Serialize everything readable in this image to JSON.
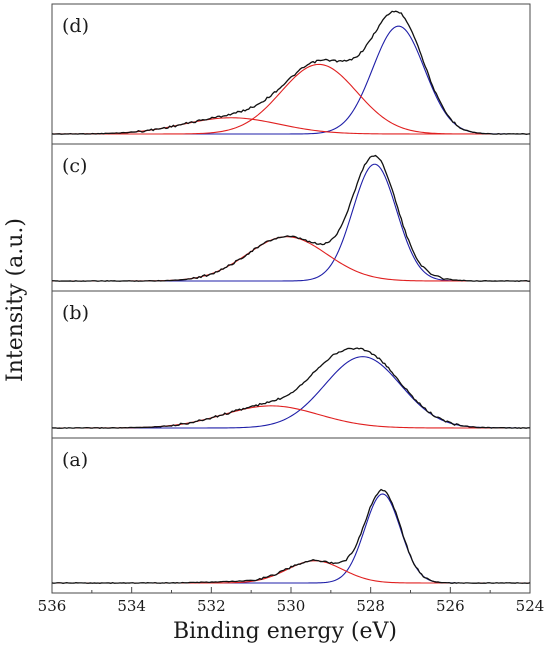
{
  "chart_data": {
    "type": "line",
    "xlabel": "Binding energy (eV)",
    "ylabel": "Intensity (a.u.)",
    "xlim": [
      536,
      524
    ],
    "x_reversed": true,
    "xticks": [
      "536",
      "534",
      "532",
      "530",
      "528",
      "526",
      "524"
    ],
    "colors": {
      "measured": "#111111",
      "fit_peak_1": "#1f1fa8",
      "fit_peak_2": "#e02020",
      "fit_peak_3": "#e02020"
    },
    "panels": [
      {
        "label": "(d)",
        "measured_peaks": [
          {
            "center": 527.3,
            "height": 0.97,
            "width": 0.65
          },
          {
            "center": 529.2,
            "height": 0.6,
            "width": 0.95
          },
          {
            "center": 531.5,
            "height": 0.14,
            "width": 1.2
          }
        ],
        "fit_peaks": [
          {
            "series": "fit_peak_1",
            "center": 527.3,
            "height": 0.93,
            "width": 0.65
          },
          {
            "series": "fit_peak_2",
            "center": 529.3,
            "height": 0.6,
            "width": 0.95
          },
          {
            "series": "fit_peak_3",
            "center": 531.5,
            "height": 0.14,
            "width": 1.2
          }
        ]
      },
      {
        "label": "(c)",
        "measured_peaks": [
          {
            "center": 527.9,
            "height": 0.98,
            "width": 0.55
          },
          {
            "center": 530.1,
            "height": 0.36,
            "width": 1.0
          },
          {
            "center": 526.9,
            "height": 0.03,
            "width": 0.6
          }
        ],
        "fit_peaks": [
          {
            "series": "fit_peak_1",
            "center": 527.9,
            "height": 0.95,
            "width": 0.55
          },
          {
            "series": "fit_peak_2",
            "center": 530.1,
            "height": 0.36,
            "width": 1.0
          }
        ]
      },
      {
        "label": "(b)",
        "measured_peaks": [
          {
            "center": 528.2,
            "height": 0.6,
            "width": 0.95
          },
          {
            "center": 530.5,
            "height": 0.18,
            "width": 1.2
          },
          {
            "center": 529.2,
            "height": 0.08,
            "width": 0.5
          }
        ],
        "fit_peaks": [
          {
            "series": "fit_peak_1",
            "center": 528.2,
            "height": 0.58,
            "width": 0.95
          },
          {
            "series": "fit_peak_2",
            "center": 530.5,
            "height": 0.18,
            "width": 1.2
          }
        ]
      },
      {
        "label": "(a)",
        "measured_peaks": [
          {
            "center": 527.7,
            "height": 0.7,
            "width": 0.45
          },
          {
            "center": 529.4,
            "height": 0.17,
            "width": 0.7
          },
          {
            "center": 531.3,
            "height": 0.01,
            "width": 0.8
          }
        ],
        "fit_peaks": [
          {
            "series": "fit_peak_1",
            "center": 527.7,
            "height": 0.68,
            "width": 0.45
          },
          {
            "series": "fit_peak_2",
            "center": 529.4,
            "height": 0.17,
            "width": 0.7
          }
        ]
      }
    ]
  }
}
